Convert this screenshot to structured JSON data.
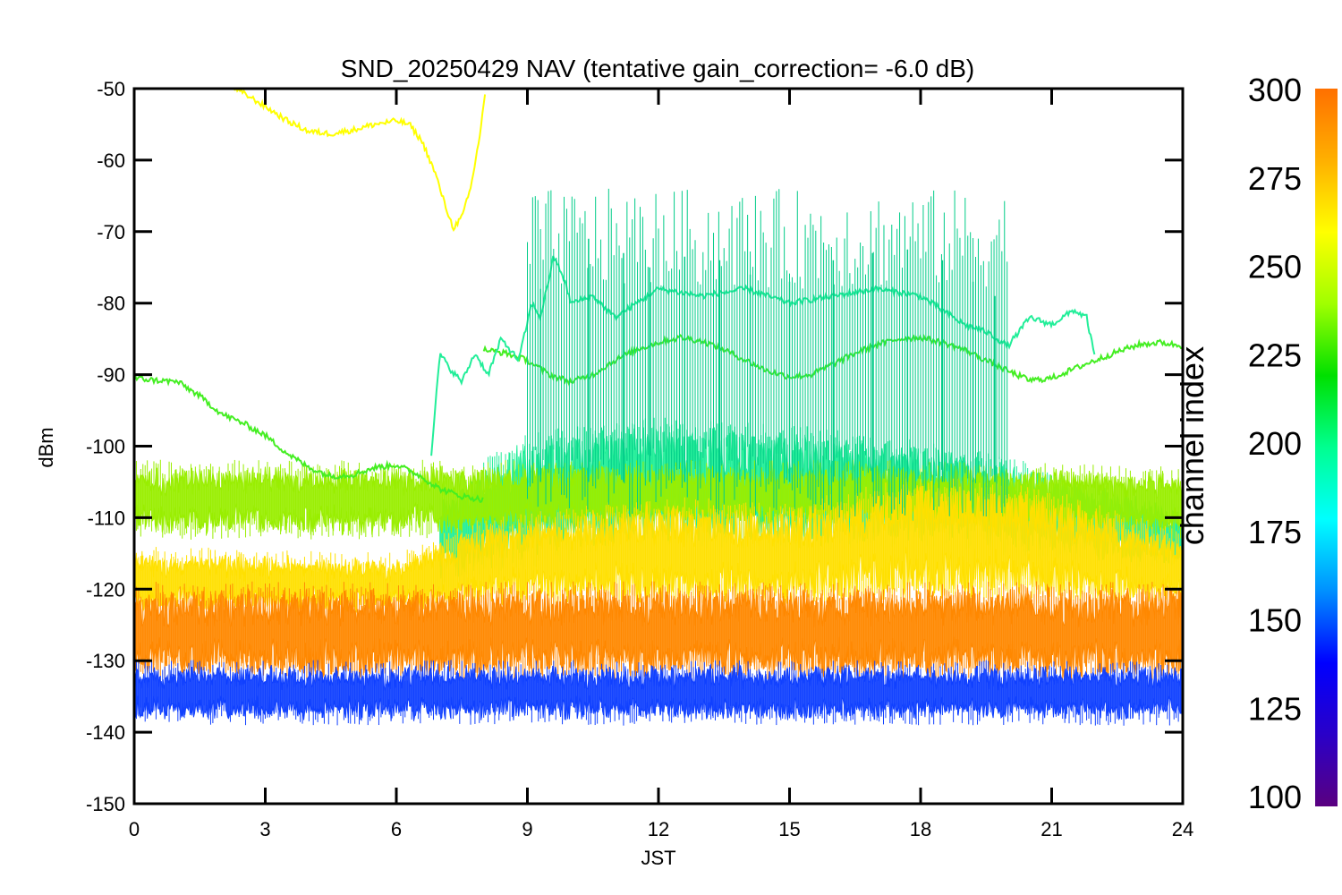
{
  "chart_data": {
    "type": "line",
    "title": "SND_20250429 NAV (tentative gain_correction= -6.0 dB)",
    "xlabel": "JST",
    "ylabel": "dBm",
    "xlim": [
      0,
      24
    ],
    "ylim": [
      -150,
      -50
    ],
    "x_ticks": [
      "0",
      "3",
      "6",
      "9",
      "12",
      "15",
      "18",
      "21",
      "24"
    ],
    "y_ticks": [
      "-50",
      "-60",
      "-70",
      "-80",
      "-90",
      "-100",
      "-110",
      "-120",
      "-130",
      "-140",
      "-150"
    ],
    "grid": false,
    "colorbar": {
      "label": "channel index",
      "range": [
        100,
        300
      ],
      "ticks": [
        "300",
        "275",
        "250",
        "225",
        "200",
        "175",
        "150",
        "125",
        "100"
      ],
      "colormap": [
        "#5a0080",
        "#2a00c8",
        "#0000ff",
        "#0090ff",
        "#00ffff",
        "#00ff90",
        "#00e000",
        "#a0ff00",
        "#ffff00",
        "#ffb000",
        "#ff7000"
      ]
    },
    "series": [
      {
        "channel": 270,
        "color": "#ffff00",
        "kind": "line",
        "points": [
          [
            2.3,
            -50
          ],
          [
            2.6,
            -51
          ],
          [
            3,
            -52.5
          ],
          [
            3.5,
            -54.5
          ],
          [
            4,
            -56
          ],
          [
            4.5,
            -56.3
          ],
          [
            5,
            -55.8
          ],
          [
            5.5,
            -55
          ],
          [
            6,
            -54.5
          ],
          [
            6.3,
            -55
          ],
          [
            6.6,
            -57.5
          ],
          [
            6.9,
            -62
          ],
          [
            7.1,
            -66
          ],
          [
            7.3,
            -69.5
          ],
          [
            7.5,
            -68
          ],
          [
            7.7,
            -64
          ],
          [
            7.9,
            -57
          ],
          [
            8.0,
            -52
          ],
          [
            8.05,
            -50
          ]
        ]
      },
      {
        "channel": 235,
        "color": "#44ee22",
        "kind": "line",
        "points": [
          [
            0,
            -90.5
          ],
          [
            0.5,
            -90.8
          ],
          [
            1,
            -91
          ],
          [
            1.5,
            -93
          ],
          [
            2,
            -95.5
          ],
          [
            2.5,
            -96.8
          ],
          [
            3,
            -98.5
          ],
          [
            3.5,
            -101
          ],
          [
            4,
            -103
          ],
          [
            4.5,
            -104.2
          ],
          [
            5,
            -104
          ],
          [
            5.5,
            -103
          ],
          [
            6,
            -102.6
          ],
          [
            6.5,
            -104
          ],
          [
            7,
            -106
          ],
          [
            7.5,
            -107
          ],
          [
            8,
            -107.5
          ]
        ]
      },
      {
        "channel": 235,
        "color": "#44ee22",
        "kind": "line",
        "points": [
          [
            8,
            -86.5
          ],
          [
            8.5,
            -87
          ],
          [
            9,
            -88
          ],
          [
            9.5,
            -90
          ],
          [
            10,
            -91
          ],
          [
            10.5,
            -90
          ],
          [
            11,
            -88
          ],
          [
            11.5,
            -86.5
          ],
          [
            12,
            -85.5
          ],
          [
            12.5,
            -84.8
          ],
          [
            13,
            -85.3
          ],
          [
            13.5,
            -86.5
          ],
          [
            14,
            -88
          ],
          [
            14.5,
            -89.5
          ],
          [
            15,
            -90.3
          ],
          [
            15.5,
            -90
          ],
          [
            16,
            -88.5
          ],
          [
            16.5,
            -87
          ],
          [
            17,
            -85.8
          ],
          [
            17.5,
            -85
          ],
          [
            18,
            -84.8
          ],
          [
            18.5,
            -85.5
          ],
          [
            19,
            -86.5
          ],
          [
            19.5,
            -88
          ],
          [
            20,
            -89.5
          ],
          [
            20.5,
            -90.8
          ],
          [
            21,
            -90.5
          ],
          [
            21.5,
            -89.2
          ],
          [
            22,
            -88
          ],
          [
            22.5,
            -86.8
          ],
          [
            23,
            -85.8
          ],
          [
            23.5,
            -85.5
          ],
          [
            24,
            -86
          ]
        ]
      },
      {
        "channel": 200,
        "color": "#22ee99",
        "kind": "line",
        "points": [
          [
            6.8,
            -101
          ],
          [
            7,
            -87
          ],
          [
            7.2,
            -89
          ],
          [
            7.5,
            -91
          ],
          [
            7.8,
            -87
          ],
          [
            8.1,
            -90
          ],
          [
            8.4,
            -85
          ],
          [
            8.8,
            -88
          ],
          [
            9.1,
            -80
          ],
          [
            9.3,
            -82
          ],
          [
            9.6,
            -73.5
          ],
          [
            9.8,
            -76
          ],
          [
            10,
            -80
          ],
          [
            10.5,
            -79
          ],
          [
            11,
            -82
          ],
          [
            12,
            -78
          ],
          [
            13,
            -79
          ],
          [
            14,
            -78
          ],
          [
            15,
            -80
          ],
          [
            16,
            -79
          ],
          [
            17,
            -78
          ],
          [
            18,
            -79
          ],
          [
            19,
            -83
          ],
          [
            19.5,
            -84
          ],
          [
            20,
            -86
          ],
          [
            20.5,
            -82
          ],
          [
            21,
            -83
          ],
          [
            21.5,
            -81
          ],
          [
            21.8,
            -82
          ],
          [
            22,
            -88
          ]
        ]
      },
      {
        "channel": 180,
        "color": "#00cc88",
        "kind": "spikes",
        "points": [
          [
            9.3,
            -78
          ],
          [
            10.4,
            -71
          ],
          [
            11.2,
            -73
          ],
          [
            11.8,
            -75
          ],
          [
            12.6,
            -73.5
          ],
          [
            13.4,
            -74
          ],
          [
            14.1,
            -76
          ],
          [
            15,
            -77
          ],
          [
            16,
            -74
          ],
          [
            16.9,
            -73
          ],
          [
            17.7,
            -72.5
          ],
          [
            18.5,
            -74
          ],
          [
            19.2,
            -77
          ],
          [
            19.7,
            -79
          ]
        ]
      },
      {
        "channel": 200,
        "color": "#22ee99",
        "kind": "band",
        "points": [
          [
            7,
            -118,
            -108
          ],
          [
            9,
            -115,
            -100
          ],
          [
            12,
            -112,
            -98
          ],
          [
            15,
            -113,
            -99
          ],
          [
            18,
            -112,
            -101
          ],
          [
            21,
            -114,
            -105
          ],
          [
            24,
            -116,
            -110
          ]
        ]
      },
      {
        "channel": 250,
        "color": "#99ee00",
        "kind": "band",
        "points": [
          [
            0,
            -111,
            -104
          ],
          [
            6,
            -111,
            -104
          ],
          [
            12,
            -110,
            -104
          ],
          [
            18,
            -110,
            -104
          ],
          [
            24,
            -111,
            -105
          ]
        ]
      },
      {
        "channel": 270,
        "color": "#ffe000",
        "kind": "band",
        "points": [
          [
            0,
            -122,
            -116
          ],
          [
            6,
            -122,
            -117
          ],
          [
            8,
            -121,
            -112
          ],
          [
            12,
            -121,
            -109
          ],
          [
            15,
            -121,
            -110
          ],
          [
            18,
            -120,
            -106
          ],
          [
            21,
            -120,
            -108
          ],
          [
            24,
            -121,
            -114
          ]
        ]
      },
      {
        "channel": 290,
        "color": "#ff8800",
        "kind": "band",
        "points": [
          [
            0,
            -131,
            -121
          ],
          [
            12,
            -131,
            -121
          ],
          [
            24,
            -131,
            -121
          ]
        ]
      },
      {
        "channel": 150,
        "color": "#1040ff",
        "kind": "band",
        "points": [
          [
            0,
            -137,
            -132
          ],
          [
            12,
            -137,
            -132
          ],
          [
            24,
            -137,
            -132
          ]
        ]
      }
    ]
  }
}
